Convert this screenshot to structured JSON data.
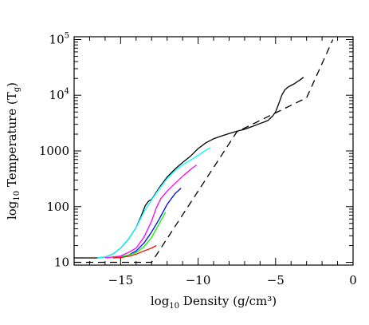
{
  "chart_data": {
    "type": "line",
    "xlabel": {
      "prefix": "log",
      "sub": "10",
      "rest": " Density (g/cm³)"
    },
    "ylabel": {
      "prefix": "log",
      "sub": "10",
      "rest": " Temperature (T",
      "rest_sub": "g",
      "close": ")"
    },
    "xlim": [
      -18,
      0
    ],
    "ylim_log10": [
      0.95,
      5.05
    ],
    "log_y": true,
    "x_ticks": [
      {
        "value": -15,
        "label": "−15"
      },
      {
        "value": -10,
        "label": "−10"
      },
      {
        "value": -5,
        "label": "−5"
      },
      {
        "value": 0,
        "label": "0"
      }
    ],
    "y_ticks": [
      {
        "value": 10,
        "base": "10",
        "exp": ""
      },
      {
        "value": 100,
        "base": "100",
        "exp": ""
      },
      {
        "value": 1000,
        "base": "1000",
        "exp": ""
      },
      {
        "value": 10000,
        "base": "10",
        "exp": "4"
      },
      {
        "value": 100000,
        "base": "10",
        "exp": "5"
      }
    ],
    "series": [
      {
        "color": "#000000",
        "dash": "solid",
        "x": [
          -18,
          -16.5,
          -16,
          -15.5,
          -15,
          -14.5,
          -14,
          -13.7,
          -13.4,
          -13.2,
          -13,
          -12.5,
          -12,
          -11.5,
          -11,
          -10.5,
          -10,
          -9.5,
          -9,
          -8.5,
          -8,
          -7.5,
          -7,
          -6.5,
          -6,
          -5.5,
          -5.2,
          -5,
          -4.8,
          -4.6,
          -4.4,
          -4.2,
          -4,
          -3.8,
          -3.6,
          -3.4,
          -3.2
        ],
        "y": [
          12,
          12,
          12.5,
          14,
          18,
          26,
          42,
          65,
          105,
          125,
          135,
          220,
          340,
          470,
          620,
          800,
          1100,
          1400,
          1650,
          1850,
          2050,
          2250,
          2450,
          2750,
          3100,
          3500,
          4200,
          5000,
          7000,
          10000,
          12500,
          14000,
          15000,
          16000,
          17500,
          19000,
          21000
        ]
      },
      {
        "color": "#00ffff",
        "dash": "solid",
        "x": [
          -16.5,
          -16,
          -15.5,
          -15,
          -14.5,
          -14,
          -13.5,
          -13,
          -12.5,
          -12,
          -11.5,
          -11,
          -10.5,
          -10,
          -9.5,
          -9.2
        ],
        "y": [
          12,
          12.5,
          14,
          18,
          26,
          42,
          80,
          132,
          210,
          320,
          440,
          560,
          680,
          830,
          1030,
          1150
        ]
      },
      {
        "color": "#ff00ff",
        "dash": "solid",
        "x": [
          -16,
          -15.5,
          -15,
          -14.5,
          -14,
          -13.5,
          -13,
          -12.7,
          -12.4,
          -12,
          -11.5,
          -11,
          -10.5,
          -10.1
        ],
        "y": [
          12,
          12.5,
          13,
          15,
          18,
          28,
          55,
          95,
          140,
          190,
          260,
          350,
          460,
          560
        ]
      },
      {
        "color": "#0000ff",
        "dash": "solid",
        "x": [
          -15.5,
          -15,
          -14.5,
          -14,
          -13.5,
          -13,
          -12.5,
          -12,
          -11.5,
          -11.1
        ],
        "y": [
          12,
          12.5,
          13.5,
          16,
          22,
          35,
          60,
          110,
          170,
          215
        ]
      },
      {
        "color": "#00ff00",
        "dash": "solid",
        "x": [
          -15.5,
          -15,
          -14.5,
          -14,
          -13.5,
          -13,
          -12.5,
          -12.1
        ],
        "y": [
          12,
          12.5,
          13.5,
          15,
          19,
          28,
          50,
          80
        ]
      },
      {
        "color": "#ff0000",
        "dash": "solid",
        "x": [
          -15.5,
          -15,
          -14.5,
          -14,
          -13.5,
          -13,
          -12.7
        ],
        "y": [
          12,
          12.2,
          12.8,
          14,
          16,
          18,
          20
        ]
      },
      {
        "color": "#000000",
        "dash": "dashed",
        "x": [
          -18,
          -13,
          -7.5,
          -3,
          -1.3
        ],
        "y": [
          10,
          10,
          2200,
          9000,
          100000
        ]
      }
    ]
  }
}
